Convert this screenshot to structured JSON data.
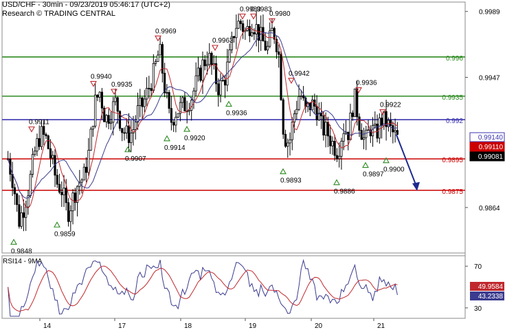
{
  "header": {
    "title": "USD/CHF - 30min - 09/23/2019 05:46:17 (UTC+2)",
    "subtitle": "Research © TRADING CENTRAL"
  },
  "rsi_panel": {
    "label": "RSI14 - 9MA",
    "axis_ticks": [
      "70",
      "30"
    ],
    "value_rsi": "49.9584",
    "value_ma": "43.2338",
    "color_rsi": "#c0282d",
    "color_ma": "#3b3b8f"
  },
  "colors": {
    "support": "#cc0000",
    "resistance": "#2e8b22",
    "pivot": "#3b35b0",
    "candles": "#000000",
    "ma_fast": "#c0282d",
    "ma_slow": "#3b3b8f",
    "arrow": "#1f2a8f",
    "current_price_bg": "#000000"
  },
  "chart_data": {
    "type": "candlestick",
    "instrument": "USD/CHF",
    "timeframe": "30min",
    "x_labels": [
      "14",
      "17",
      "18",
      "19",
      "20",
      "21"
    ],
    "y_ticks": [
      "0.9989",
      "0.9947",
      "0.9864"
    ],
    "y_range": [
      0.9835,
      0.9995
    ],
    "levels": [
      {
        "label": "0.996",
        "value": 0.996,
        "kind": "resistance"
      },
      {
        "label": "0.9935",
        "value": 0.9935,
        "kind": "resistance"
      },
      {
        "label": "0.992",
        "value": 0.992,
        "kind": "pivot"
      },
      {
        "label": "0.9895",
        "value": 0.9895,
        "kind": "support"
      },
      {
        "label": "0.9875",
        "value": 0.9875,
        "kind": "support"
      }
    ],
    "price_tags": [
      {
        "label": "0.99140",
        "value": 0.9914
      },
      {
        "label": "0.99110",
        "value": 0.9911
      },
      {
        "label": "0.99081",
        "value": 0.99081
      }
    ],
    "annotations": [
      {
        "label": "0.9848",
        "value": 0.9848,
        "type": "low"
      },
      {
        "label": "0.9911",
        "value": 0.9911,
        "type": "high"
      },
      {
        "label": "0.9859",
        "value": 0.9859,
        "type": "low"
      },
      {
        "label": "0.9940",
        "value": 0.994,
        "type": "high"
      },
      {
        "label": "0.9935",
        "value": 0.9935,
        "type": "high"
      },
      {
        "label": "0.9907",
        "value": 0.9907,
        "type": "low"
      },
      {
        "label": "0.9969",
        "value": 0.9969,
        "type": "high"
      },
      {
        "label": "0.9914",
        "value": 0.9914,
        "type": "low"
      },
      {
        "label": "0.9920",
        "value": 0.992,
        "type": "low"
      },
      {
        "label": "0.9963",
        "value": 0.9963,
        "type": "high"
      },
      {
        "label": "0.9936",
        "value": 0.9936,
        "type": "low"
      },
      {
        "label": "0.9983",
        "value": 0.9983,
        "type": "high"
      },
      {
        "label": "0.9983",
        "value": 0.9983,
        "type": "high"
      },
      {
        "label": "0.9980",
        "value": 0.998,
        "type": "high"
      },
      {
        "label": "0.9942",
        "value": 0.9942,
        "type": "high"
      },
      {
        "label": "0.9893",
        "value": 0.9893,
        "type": "low"
      },
      {
        "label": "0.9886",
        "value": 0.9886,
        "type": "low"
      },
      {
        "label": "0.9936",
        "value": 0.9936,
        "type": "high"
      },
      {
        "label": "0.9897",
        "value": 0.9897,
        "type": "low"
      },
      {
        "label": "0.9922",
        "value": 0.9922,
        "type": "high"
      },
      {
        "label": "0.9900",
        "value": 0.99,
        "type": "low"
      }
    ],
    "price_path": [
      0.9895,
      0.988,
      0.9855,
      0.9865,
      0.988,
      0.99,
      0.9911,
      0.9908,
      0.9895,
      0.988,
      0.9875,
      0.986,
      0.987,
      0.988,
      0.9883,
      0.99,
      0.993,
      0.9938,
      0.992,
      0.9925,
      0.9932,
      0.9915,
      0.991,
      0.9912,
      0.9925,
      0.993,
      0.994,
      0.995,
      0.9965,
      0.994,
      0.9918,
      0.9925,
      0.9928,
      0.993,
      0.9935,
      0.9945,
      0.9955,
      0.9961,
      0.995,
      0.994,
      0.9945,
      0.996,
      0.998,
      0.9982,
      0.9975,
      0.9983,
      0.9978,
      0.997,
      0.9965,
      0.9978,
      0.9965,
      0.991,
      0.9905,
      0.9925,
      0.9938,
      0.9925,
      0.993,
      0.9928,
      0.9915,
      0.9912,
      0.9905,
      0.99,
      0.9915,
      0.9912,
      0.9935,
      0.9918,
      0.9905,
      0.9915,
      0.991,
      0.992,
      0.9918,
      0.9912,
      0.9908
    ]
  }
}
